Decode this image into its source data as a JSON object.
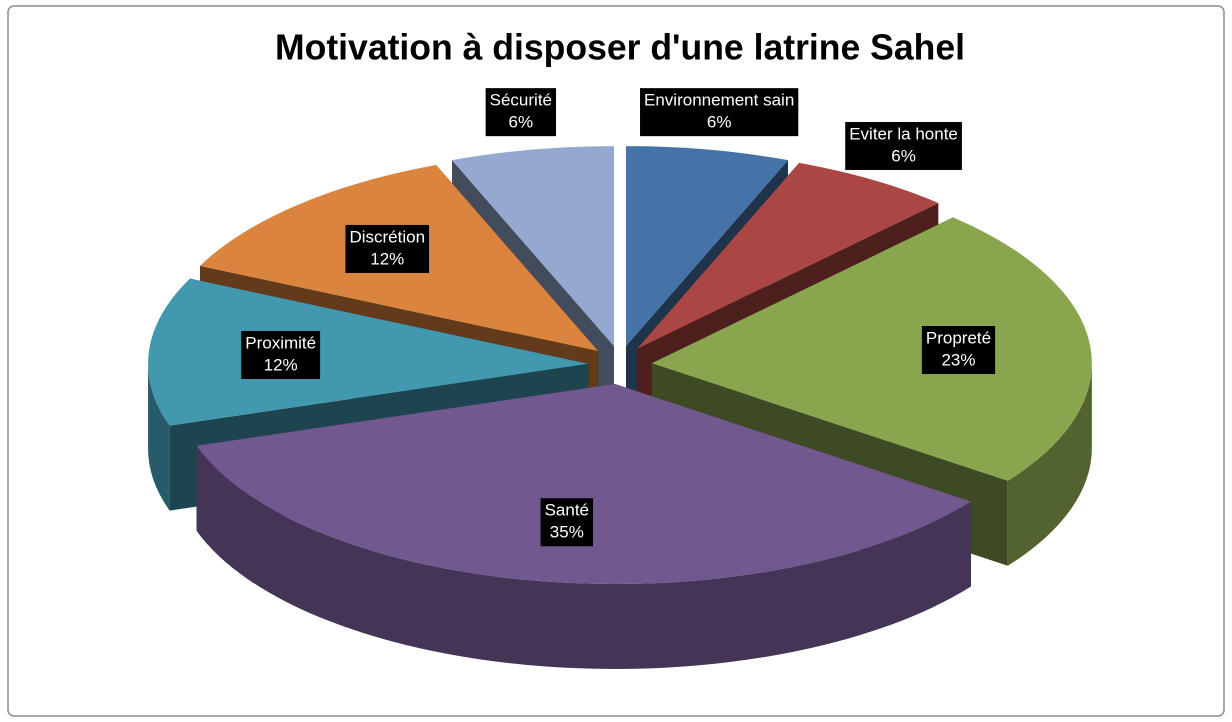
{
  "chart_data": {
    "type": "pie",
    "title": "Motivation à disposer d'une latrine Sahel",
    "categories": [
      "Environnement sain",
      "Eviter la honte",
      "Propreté",
      "Santé",
      "Proximité",
      "Discrétion",
      "Sécurité"
    ],
    "values": [
      6,
      6,
      23,
      35,
      12,
      12,
      6
    ],
    "value_labels": [
      "6%",
      "6%",
      "23%",
      "35%",
      "12%",
      "12%",
      "6%"
    ],
    "colors": [
      "#4572a7",
      "#aa4643",
      "#89a54e",
      "#71588f",
      "#4198af",
      "#db843d",
      "#93a9cf"
    ]
  }
}
